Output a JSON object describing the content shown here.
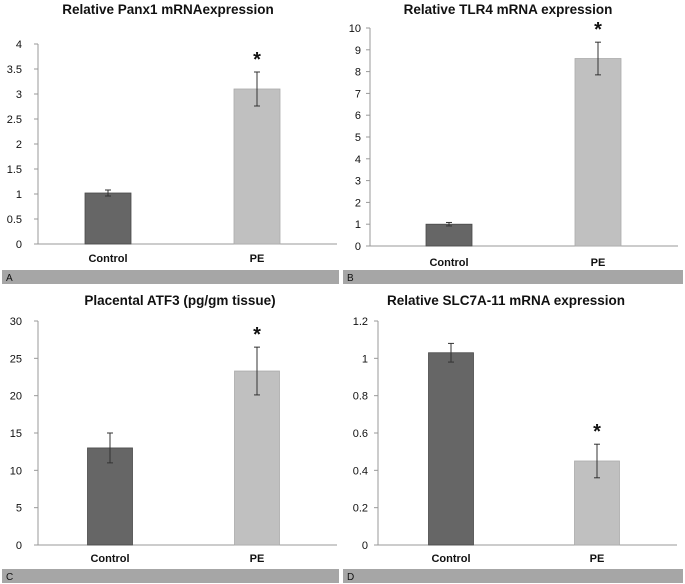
{
  "colors": {
    "control_bar": "#666666",
    "pe_bar": "#c0c0c0",
    "strip": "#a6a6a6",
    "axis": "#999999",
    "text": "#111111"
  },
  "chart_data": [
    {
      "panel_label": "A",
      "type": "bar",
      "title": "Relative Panx1 mRNAexpression",
      "categories": [
        "Control",
        "PE"
      ],
      "values": [
        1.02,
        3.1
      ],
      "errors": [
        0.06,
        0.34
      ],
      "significance": [
        "",
        "*"
      ],
      "ylim": [
        0,
        4
      ],
      "yticks": [
        "0",
        "0.5",
        "1",
        "1.5",
        "2",
        "2.5",
        "3",
        "3.5",
        "4"
      ]
    },
    {
      "panel_label": "B",
      "type": "bar",
      "title": "Relative TLR4 mRNA expression",
      "categories": [
        "Control",
        "PE"
      ],
      "values": [
        1.0,
        8.6
      ],
      "errors": [
        0.08,
        0.75
      ],
      "significance": [
        "",
        "*"
      ],
      "ylim": [
        0,
        10
      ],
      "yticks": [
        "0",
        "1",
        "2",
        "3",
        "4",
        "5",
        "6",
        "7",
        "8",
        "9",
        "10"
      ]
    },
    {
      "panel_label": "C",
      "type": "bar",
      "title": "Placental ATF3 (pg/gm tissue)",
      "categories": [
        "Control",
        "PE"
      ],
      "values": [
        13.0,
        23.3
      ],
      "errors": [
        2.0,
        3.2
      ],
      "significance": [
        "",
        "*"
      ],
      "ylim": [
        0,
        30
      ],
      "yticks": [
        "0",
        "5",
        "10",
        "15",
        "20",
        "25",
        "30"
      ]
    },
    {
      "panel_label": "D",
      "type": "bar",
      "title": "Relative SLC7A-11  mRNA expression",
      "categories": [
        "Control",
        "PE"
      ],
      "values": [
        1.03,
        0.45
      ],
      "errors": [
        0.05,
        0.09
      ],
      "significance": [
        "",
        "*"
      ],
      "ylim": [
        0,
        1.2
      ],
      "yticks": [
        "0",
        "0.2",
        "0.4",
        "0.6",
        "0.8",
        "1",
        "1.2"
      ]
    }
  ]
}
